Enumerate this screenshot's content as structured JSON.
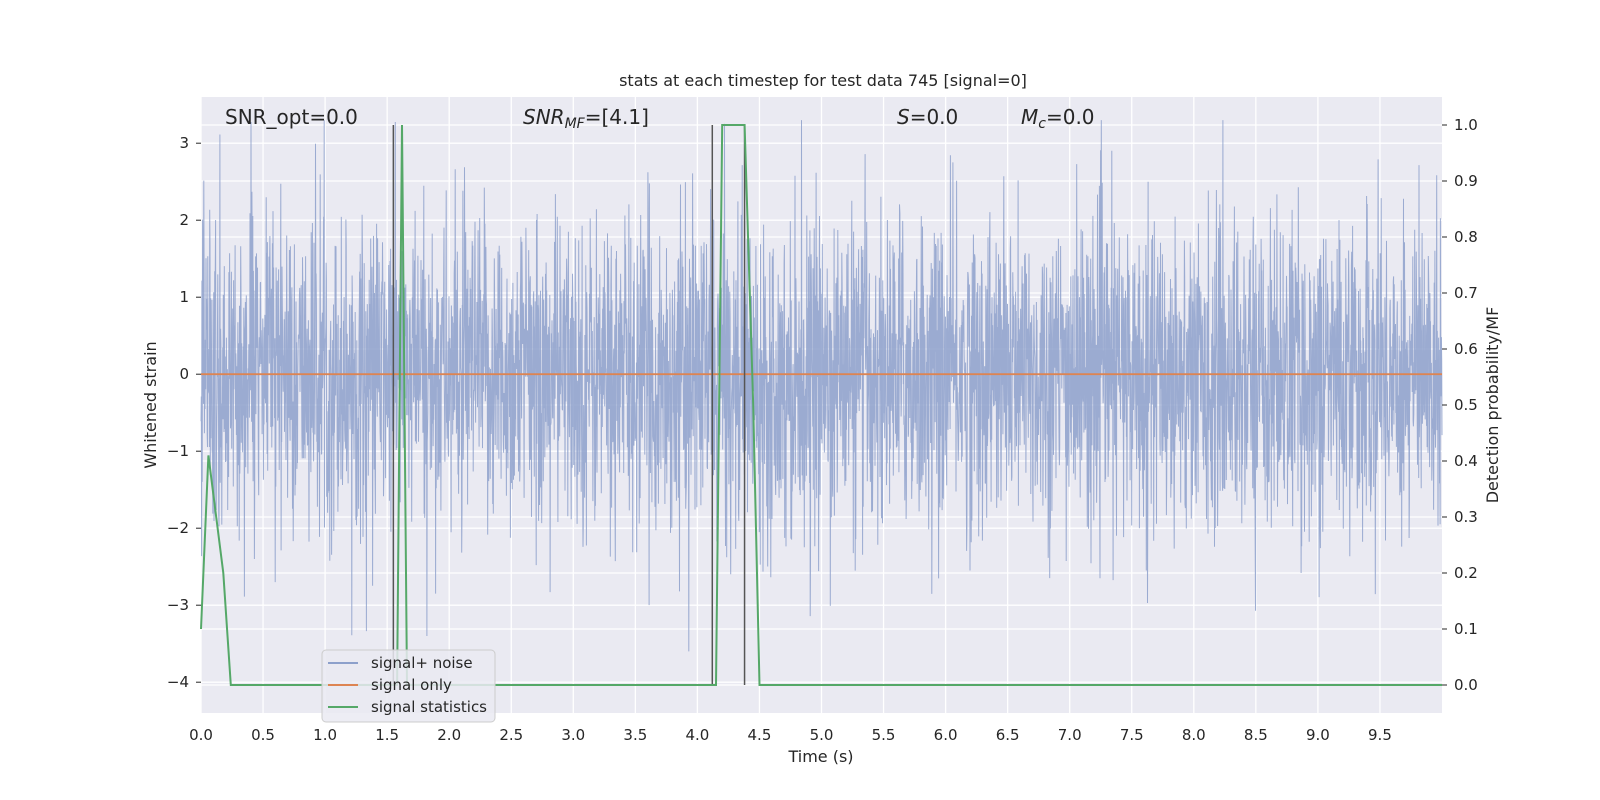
{
  "chart_data": {
    "type": "line",
    "title": "stats at each timestep for test data 745 [signal=0]",
    "xlabel": "Time (s)",
    "ylabel": "Whitened strain",
    "y2label": "Detection probability/MF",
    "xlim": [
      0.0,
      10.0
    ],
    "ylim": [
      -4.4,
      3.6
    ],
    "y2lim": [
      -0.05,
      1.05
    ],
    "x_ticks": [
      0.0,
      0.5,
      1.0,
      1.5,
      2.0,
      2.5,
      3.0,
      3.5,
      4.0,
      4.5,
      5.0,
      5.5,
      6.0,
      6.5,
      7.0,
      7.5,
      8.0,
      8.5,
      9.0,
      9.5
    ],
    "x_tick_labels": [
      "0.0",
      "0.5",
      "1.0",
      "1.5",
      "2.0",
      "2.5",
      "3.0",
      "3.5",
      "4.0",
      "4.5",
      "5.0",
      "5.5",
      "6.0",
      "6.5",
      "7.0",
      "7.5",
      "8.0",
      "8.5",
      "9.0",
      "9.5"
    ],
    "y_ticks": [
      3,
      2,
      1,
      0,
      -1,
      -2,
      -3,
      -4
    ],
    "y_tick_labels": [
      "3",
      "2",
      "1",
      "0",
      "−1",
      "−2",
      "−3",
      "−4"
    ],
    "y2_ticks": [
      1.0,
      0.9,
      0.8,
      0.7,
      0.6,
      0.5,
      0.4,
      0.3,
      0.2,
      0.1,
      0.0
    ],
    "y2_tick_labels": [
      "1.0",
      "0.9",
      "0.8",
      "0.7",
      "0.6",
      "0.5",
      "0.4",
      "0.3",
      "0.2",
      "0.1",
      "0.0"
    ],
    "grid": true,
    "legend": "lower-left",
    "annotations": {
      "snr_opt_text": "SNR_opt=0.0",
      "snr_mf_main": "SNR",
      "snr_mf_sub": "MF",
      "snr_mf_value": "=[4.1]",
      "s_main": "S",
      "s_value": "=0.0",
      "mc_main": "M",
      "mc_sub": "c",
      "mc_value": "=0.0"
    },
    "series": [
      {
        "name": "signal+ noise",
        "color": "#8da0cb",
        "kind": "noise",
        "x_range": [
          0.0,
          10.0
        ],
        "approx_amplitude": [
          -3.6,
          3.3
        ],
        "typical_std": 1.0
      },
      {
        "name": "signal only",
        "color": "#dd8452",
        "x": [
          0.0,
          10.0
        ],
        "y": [
          0.0,
          0.0
        ]
      },
      {
        "name": "signal statistics",
        "color": "#55a868",
        "axis": "right",
        "x": [
          0.0,
          0.06,
          0.18,
          0.24,
          0.3,
          1.55,
          1.58,
          1.62,
          1.66,
          1.7,
          4.12,
          4.15,
          4.2,
          4.38,
          4.45,
          4.5,
          10.0
        ],
        "y": [
          0.1,
          0.41,
          0.2,
          0.0,
          0.0,
          0.0,
          0.0,
          1.0,
          0.0,
          0.0,
          0.0,
          0.0,
          1.0,
          1.0,
          0.5,
          0.0,
          0.0
        ]
      }
    ],
    "vertical_markers": [
      1.55,
      4.12,
      4.38
    ]
  }
}
